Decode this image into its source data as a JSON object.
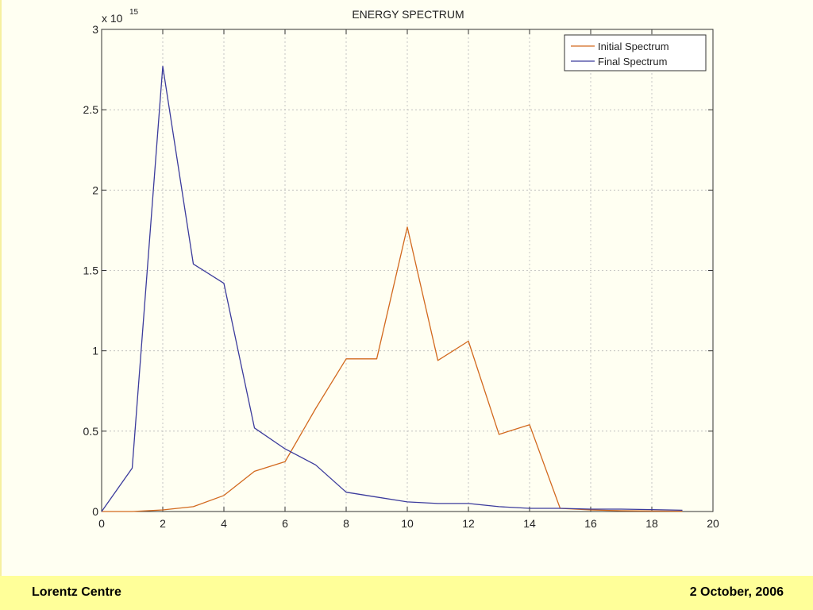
{
  "chart_data": {
    "type": "line",
    "title": "ENERGY SPECTRUM",
    "y_multiplier": {
      "base": "x 10",
      "exponent": "15"
    },
    "xlabel": "",
    "ylabel": "",
    "xlim": [
      0,
      20
    ],
    "ylim": [
      0,
      3
    ],
    "xticks": [
      0,
      2,
      4,
      6,
      8,
      10,
      12,
      14,
      16,
      18,
      20
    ],
    "yticks": [
      0,
      0.5,
      1,
      1.5,
      2,
      2.5,
      3
    ],
    "xtick_labels": [
      "0",
      "2",
      "4",
      "6",
      "8",
      "10",
      "12",
      "14",
      "16",
      "18",
      "20"
    ],
    "ytick_labels": [
      "0",
      "0.5",
      "1",
      "1.5",
      "2",
      "2.5",
      "3"
    ],
    "grid": true,
    "legend_position": "top-right",
    "series": [
      {
        "name": "Initial Spectrum",
        "color": "#d2691e",
        "x": [
          0,
          1,
          2,
          3,
          4,
          5,
          6,
          7,
          8,
          9,
          10,
          11,
          12,
          13,
          14,
          15,
          16,
          17,
          18,
          19
        ],
        "y": [
          0,
          0,
          0.01,
          0.03,
          0.1,
          0.25,
          0.31,
          0.64,
          0.95,
          0.95,
          1.77,
          0.94,
          1.06,
          0.48,
          0.54,
          0.02,
          0.01,
          0.005,
          0.003,
          0.002
        ]
      },
      {
        "name": "Final Spectrum",
        "color": "#3b3b9c",
        "x": [
          0,
          1,
          2,
          3,
          4,
          5,
          6,
          7,
          8,
          9,
          10,
          11,
          12,
          13,
          14,
          15,
          16,
          17,
          18,
          19
        ],
        "y": [
          0,
          0.27,
          2.77,
          1.54,
          1.42,
          0.52,
          0.39,
          0.29,
          0.12,
          0.09,
          0.06,
          0.05,
          0.05,
          0.03,
          0.02,
          0.02,
          0.015,
          0.015,
          0.012,
          0.008
        ]
      }
    ]
  },
  "footer": {
    "left": "Lorentz Centre",
    "right": "2 October, 2006"
  }
}
